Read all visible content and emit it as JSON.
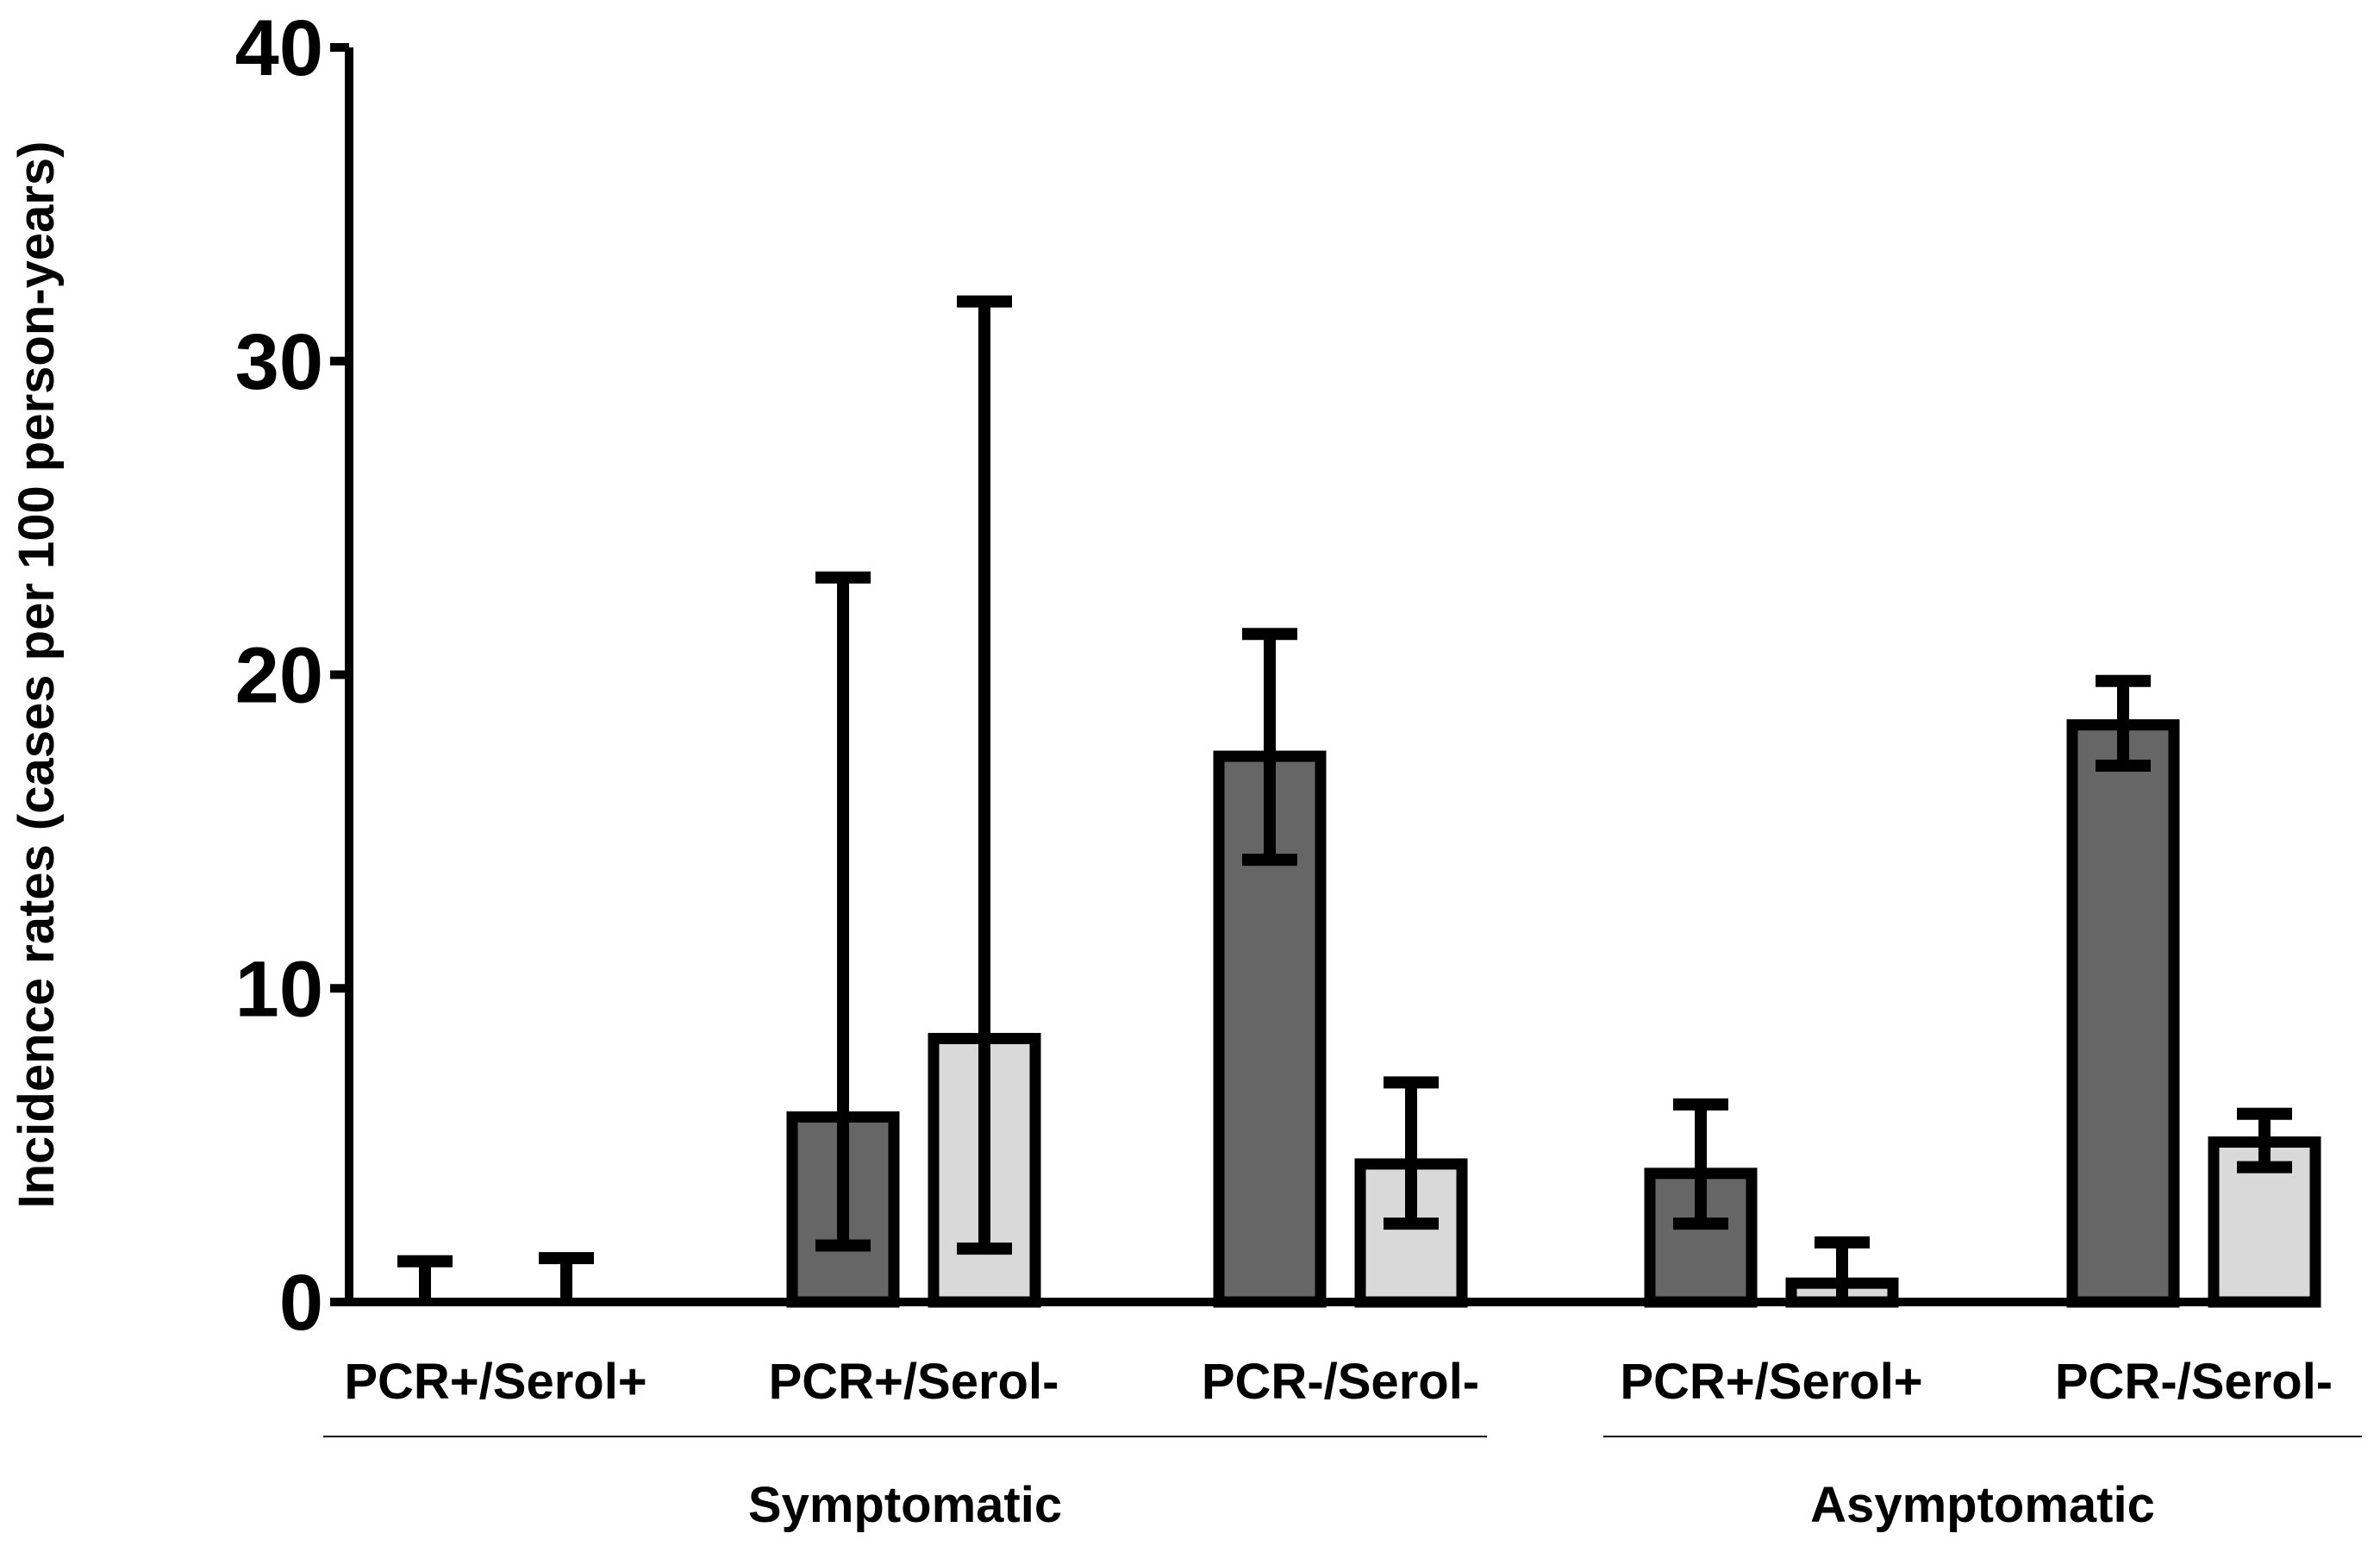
{
  "chart_data": {
    "type": "bar",
    "ylabel": "Incidence rates (cases per 100 person-years)",
    "xlabel": "",
    "ylim": [
      0,
      40
    ],
    "yticks": [
      0,
      10,
      20,
      30,
      40
    ],
    "grid": false,
    "legend": "none",
    "colors": {
      "dark": "#666666",
      "light": "#d9d9d9",
      "stroke": "#000000"
    },
    "groups": [
      {
        "label": "Symptomatic",
        "categories": [
          "PCR+/Serol+",
          "PCR+/Serol-",
          "PCR-/Serol-"
        ]
      },
      {
        "label": "Asymptomatic",
        "categories": [
          "PCR+/Serol+",
          "PCR-/Serol-"
        ]
      }
    ],
    "categories": [
      {
        "label": "PCR+/Serol+",
        "group": "Symptomatic",
        "bars": [
          {
            "shade": "dark",
            "value": 0,
            "ci": [
              0,
              1.3
            ]
          },
          {
            "shade": "light",
            "value": 0,
            "ci": [
              0,
              1.4
            ]
          }
        ]
      },
      {
        "label": "PCR+/Serol-",
        "group": "Symptomatic",
        "bars": [
          {
            "shade": "dark",
            "value": 5.9,
            "ci": [
              1.8,
              23.1
            ]
          },
          {
            "shade": "light",
            "value": 8.4,
            "ci": [
              1.7,
              31.9
            ]
          }
        ]
      },
      {
        "label": "PCR-/Serol-",
        "group": "Symptomatic",
        "bars": [
          {
            "shade": "dark",
            "value": 17.4,
            "ci": [
              14.1,
              21.3
            ]
          },
          {
            "shade": "light",
            "value": 4.4,
            "ci": [
              2.5,
              7.0
            ]
          }
        ]
      },
      {
        "label": "PCR+/Serol+",
        "group": "Asymptomatic",
        "bars": [
          {
            "shade": "dark",
            "value": 4.1,
            "ci": [
              2.5,
              6.3
            ]
          },
          {
            "shade": "light",
            "value": 0.6,
            "ci": [
              0,
              1.9
            ]
          }
        ]
      },
      {
        "label": "PCR-/Serol-",
        "group": "Asymptomatic",
        "bars": [
          {
            "shade": "dark",
            "value": 18.4,
            "ci": [
              17.1,
              19.8
            ]
          },
          {
            "shade": "light",
            "value": 5.1,
            "ci": [
              4.3,
              6.0
            ]
          }
        ]
      }
    ]
  }
}
